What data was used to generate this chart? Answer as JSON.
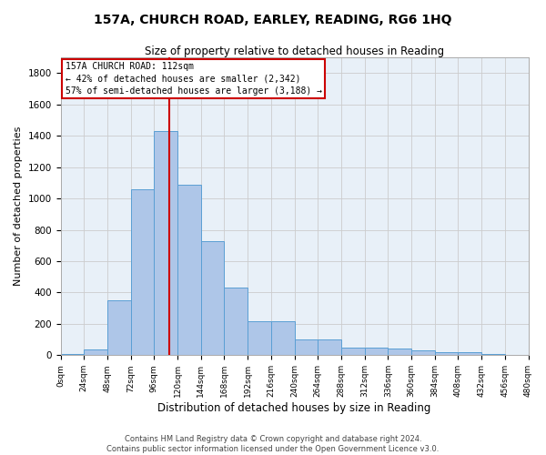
{
  "title": "157A, CHURCH ROAD, EARLEY, READING, RG6 1HQ",
  "subtitle": "Size of property relative to detached houses in Reading",
  "xlabel": "Distribution of detached houses by size in Reading",
  "ylabel": "Number of detached properties",
  "bar_color": "#aec6e8",
  "bar_edge_color": "#5a9fd4",
  "background_color": "#ffffff",
  "plot_bg_color": "#e8f0f8",
  "grid_color": "#cccccc",
  "annotation_box_color": "#cc0000",
  "vline_color": "#cc0000",
  "vline_x": 112,
  "bin_width": 24,
  "bins": [
    0,
    24,
    48,
    72,
    96,
    120,
    144,
    168,
    192,
    216,
    240,
    264,
    288,
    312,
    336,
    360,
    384,
    408,
    432,
    456,
    480
  ],
  "bin_labels": [
    "0sqm",
    "24sqm",
    "48sqm",
    "72sqm",
    "96sqm",
    "120sqm",
    "144sqm",
    "168sqm",
    "192sqm",
    "216sqm",
    "240sqm",
    "264sqm",
    "288sqm",
    "312sqm",
    "336sqm",
    "360sqm",
    "384sqm",
    "408sqm",
    "432sqm",
    "456sqm",
    "480sqm"
  ],
  "heights": [
    10,
    35,
    350,
    1060,
    1430,
    1090,
    730,
    430,
    215,
    215,
    100,
    100,
    50,
    50,
    40,
    30,
    20,
    20,
    5,
    2,
    0
  ],
  "annotation_line1": "157A CHURCH ROAD: 112sqm",
  "annotation_line2": "← 42% of detached houses are smaller (2,342)",
  "annotation_line3": "57% of semi-detached houses are larger (3,188) →",
  "ylim": [
    0,
    1900
  ],
  "yticks": [
    0,
    200,
    400,
    600,
    800,
    1000,
    1200,
    1400,
    1600,
    1800
  ],
  "footer_line1": "Contains HM Land Registry data © Crown copyright and database right 2024.",
  "footer_line2": "Contains public sector information licensed under the Open Government Licence v3.0."
}
